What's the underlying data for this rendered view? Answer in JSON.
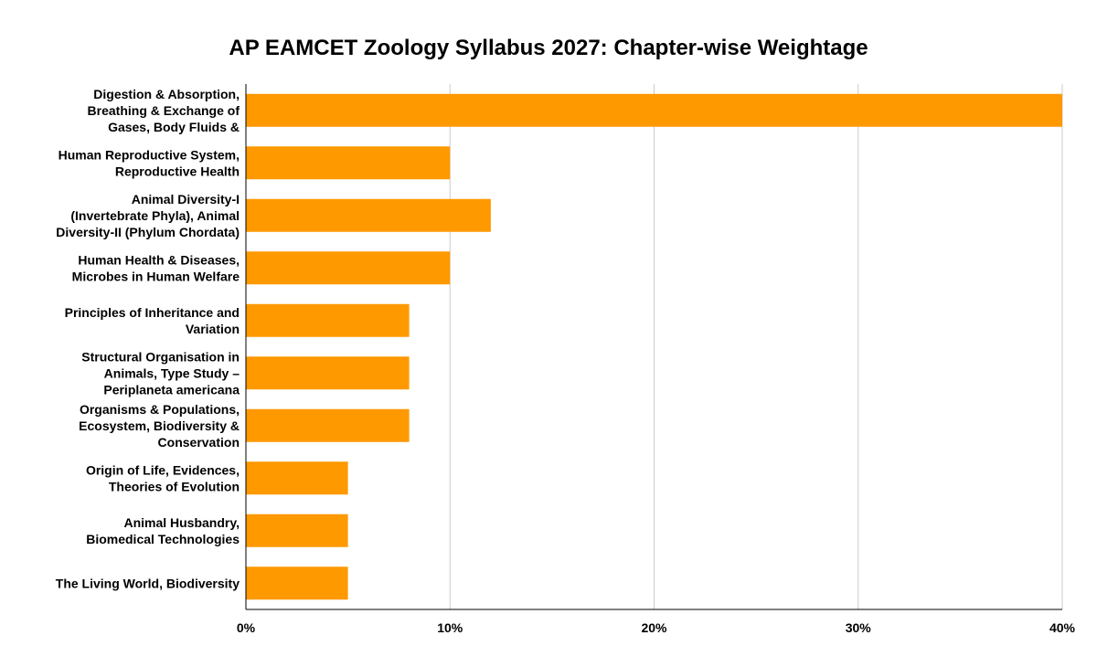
{
  "chart_data": {
    "type": "bar",
    "orientation": "horizontal",
    "title": "AP EAMCET Zoology Syllabus 2027: Chapter-wise Weightage",
    "xlabel": "",
    "ylabel": "",
    "categories": [
      "Digestion & Absorption, Breathing & Exchange of Gases, Body Fluids &",
      "Human Reproductive System, Reproductive Health",
      "Animal Diversity-I (Invertebrate Phyla), Animal Diversity-II (Phylum Chordata)",
      "Human Health & Diseases, Microbes in Human Welfare",
      "Principles of Inheritance and Variation",
      "Structural Organisation in Animals, Type Study – Periplaneta americana",
      "Organisms & Populations, Ecosystem, Biodiversity & Conservation",
      "Origin of Life, Evidences, Theories of Evolution",
      "Animal Husbandry, Biomedical Technologies",
      "The Living World, Biodiversity"
    ],
    "category_lines": [
      [
        "Digestion & Absorption,",
        "Breathing & Exchange of",
        "Gases, Body Fluids &"
      ],
      [
        "Human Reproductive System,",
        "Reproductive Health"
      ],
      [
        "Animal Diversity-I",
        "(Invertebrate Phyla), Animal",
        "Diversity-II (Phylum Chordata)"
      ],
      [
        "Human Health & Diseases,",
        "Microbes in Human Welfare"
      ],
      [
        "Principles of Inheritance and",
        "Variation"
      ],
      [
        "Structural Organisation in",
        "Animals, Type Study –",
        "Periplaneta americana"
      ],
      [
        "Organisms & Populations,",
        "Ecosystem, Biodiversity &",
        "Conservation"
      ],
      [
        "Origin of Life, Evidences,",
        "Theories of Evolution"
      ],
      [
        "Animal Husbandry,",
        "Biomedical Technologies"
      ],
      [
        "The Living World, Biodiversity"
      ]
    ],
    "values": [
      40,
      10,
      12,
      10,
      8,
      8,
      8,
      5,
      5,
      5
    ],
    "value_unit": "%",
    "xlim": [
      0,
      40
    ],
    "xticks": [
      0,
      10,
      20,
      30,
      40
    ],
    "xtick_labels": [
      "0%",
      "10%",
      "20%",
      "30%",
      "40%"
    ],
    "grid": "vertical",
    "legend": "none",
    "bar_color": "#ff9900"
  }
}
